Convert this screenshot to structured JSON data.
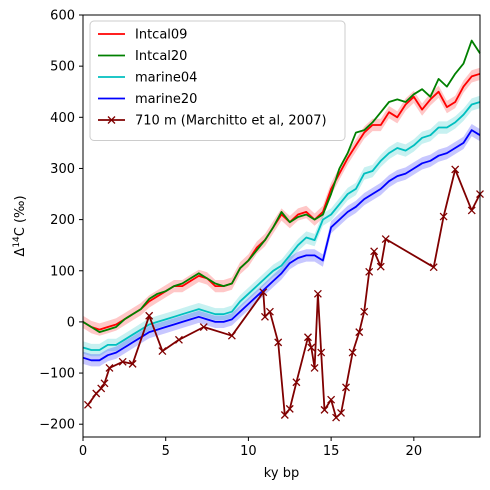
{
  "chart_data": {
    "type": "line",
    "xlabel": "ky bp",
    "ylabel_main": "Δ",
    "ylabel_sup": "14",
    "ylabel_rest": "C (‰)",
    "xlim": [
      0,
      24
    ],
    "ylim": [
      -225,
      600
    ],
    "xticks": [
      0,
      5,
      10,
      15,
      20
    ],
    "yticks": [
      -200,
      -100,
      0,
      100,
      200,
      300,
      400,
      500,
      600
    ],
    "legend_position": "top-left",
    "series": [
      {
        "name": "Intcal09",
        "color": "#ff0000",
        "band": true,
        "points": [
          [
            0,
            0
          ],
          [
            0.5,
            -10
          ],
          [
            1,
            -15
          ],
          [
            1.5,
            -10
          ],
          [
            2,
            -5
          ],
          [
            2.5,
            5
          ],
          [
            3,
            15
          ],
          [
            3.5,
            25
          ],
          [
            4,
            40
          ],
          [
            4.5,
            50
          ],
          [
            5,
            60
          ],
          [
            5.5,
            70
          ],
          [
            6,
            70
          ],
          [
            6.5,
            80
          ],
          [
            7,
            90
          ],
          [
            7.5,
            85
          ],
          [
            8,
            70
          ],
          [
            8.5,
            70
          ],
          [
            9,
            75
          ],
          [
            9.5,
            105
          ],
          [
            10,
            120
          ],
          [
            10.5,
            145
          ],
          [
            11,
            160
          ],
          [
            11.5,
            185
          ],
          [
            12,
            210
          ],
          [
            12.5,
            195
          ],
          [
            13,
            210
          ],
          [
            13.5,
            215
          ],
          [
            14,
            200
          ],
          [
            14.5,
            215
          ],
          [
            15,
            260
          ],
          [
            15.5,
            290
          ],
          [
            16,
            320
          ],
          [
            16.5,
            345
          ],
          [
            17,
            370
          ],
          [
            17.5,
            385
          ],
          [
            18,
            385
          ],
          [
            18.5,
            410
          ],
          [
            19,
            400
          ],
          [
            19.5,
            425
          ],
          [
            20,
            440
          ],
          [
            20.5,
            415
          ],
          [
            21,
            435
          ],
          [
            21.5,
            450
          ],
          [
            22,
            420
          ],
          [
            22.5,
            430
          ],
          [
            23,
            460
          ],
          [
            23.5,
            480
          ],
          [
            24,
            485
          ]
        ]
      },
      {
        "name": "Intcal20",
        "color": "#008000",
        "band": false,
        "points": [
          [
            0,
            0
          ],
          [
            0.5,
            -10
          ],
          [
            1,
            -20
          ],
          [
            1.5,
            -15
          ],
          [
            2,
            -10
          ],
          [
            2.5,
            5
          ],
          [
            3,
            15
          ],
          [
            3.5,
            25
          ],
          [
            4,
            45
          ],
          [
            4.5,
            55
          ],
          [
            5,
            60
          ],
          [
            5.5,
            70
          ],
          [
            6,
            75
          ],
          [
            6.5,
            85
          ],
          [
            7,
            95
          ],
          [
            7.5,
            85
          ],
          [
            8,
            75
          ],
          [
            8.5,
            70
          ],
          [
            9,
            75
          ],
          [
            9.5,
            105
          ],
          [
            10,
            120
          ],
          [
            10.5,
            140
          ],
          [
            11,
            160
          ],
          [
            11.5,
            185
          ],
          [
            12,
            215
          ],
          [
            12.5,
            195
          ],
          [
            13,
            205
          ],
          [
            13.5,
            210
          ],
          [
            14,
            200
          ],
          [
            14.5,
            210
          ],
          [
            15,
            250
          ],
          [
            15.5,
            300
          ],
          [
            16,
            330
          ],
          [
            16.5,
            370
          ],
          [
            17,
            375
          ],
          [
            17.5,
            390
          ],
          [
            18,
            410
          ],
          [
            18.5,
            430
          ],
          [
            19,
            435
          ],
          [
            19.5,
            430
          ],
          [
            20,
            445
          ],
          [
            20.5,
            455
          ],
          [
            21,
            440
          ],
          [
            21.5,
            475
          ],
          [
            22,
            460
          ],
          [
            22.5,
            485
          ],
          [
            23,
            505
          ],
          [
            23.5,
            550
          ],
          [
            24,
            525
          ]
        ]
      },
      {
        "name": "marine04",
        "color": "#00bfbf",
        "band": true,
        "points": [
          [
            0,
            -50
          ],
          [
            0.5,
            -55
          ],
          [
            1,
            -55
          ],
          [
            1.5,
            -45
          ],
          [
            2,
            -45
          ],
          [
            2.5,
            -35
          ],
          [
            3,
            -25
          ],
          [
            3.5,
            -15
          ],
          [
            4,
            -5
          ],
          [
            4.5,
            0
          ],
          [
            5,
            5
          ],
          [
            5.5,
            10
          ],
          [
            6,
            15
          ],
          [
            6.5,
            20
          ],
          [
            7,
            25
          ],
          [
            7.5,
            20
          ],
          [
            8,
            15
          ],
          [
            8.5,
            15
          ],
          [
            9,
            20
          ],
          [
            9.5,
            40
          ],
          [
            10,
            55
          ],
          [
            10.5,
            70
          ],
          [
            11,
            85
          ],
          [
            11.5,
            100
          ],
          [
            12,
            110
          ],
          [
            12.5,
            130
          ],
          [
            13,
            150
          ],
          [
            13.5,
            165
          ],
          [
            14,
            160
          ],
          [
            14.5,
            200
          ],
          [
            15,
            210
          ],
          [
            15.5,
            230
          ],
          [
            16,
            250
          ],
          [
            16.5,
            260
          ],
          [
            17,
            290
          ],
          [
            17.5,
            295
          ],
          [
            18,
            315
          ],
          [
            18.5,
            330
          ],
          [
            19,
            340
          ],
          [
            19.5,
            335
          ],
          [
            20,
            345
          ],
          [
            20.5,
            360
          ],
          [
            21,
            365
          ],
          [
            21.5,
            380
          ],
          [
            22,
            380
          ],
          [
            22.5,
            390
          ],
          [
            23,
            405
          ],
          [
            23.5,
            425
          ],
          [
            24,
            430
          ]
        ]
      },
      {
        "name": "marine20",
        "color": "#0000ff",
        "band": true,
        "points": [
          [
            0,
            -70
          ],
          [
            0.5,
            -75
          ],
          [
            1,
            -75
          ],
          [
            1.5,
            -65
          ],
          [
            2,
            -60
          ],
          [
            2.5,
            -50
          ],
          [
            3,
            -40
          ],
          [
            3.5,
            -30
          ],
          [
            4,
            -20
          ],
          [
            4.5,
            -15
          ],
          [
            5,
            -10
          ],
          [
            5.5,
            -5
          ],
          [
            6,
            0
          ],
          [
            6.5,
            5
          ],
          [
            7,
            10
          ],
          [
            7.5,
            5
          ],
          [
            8,
            0
          ],
          [
            8.5,
            0
          ],
          [
            9,
            5
          ],
          [
            9.5,
            20
          ],
          [
            10,
            35
          ],
          [
            10.5,
            50
          ],
          [
            11,
            65
          ],
          [
            11.5,
            80
          ],
          [
            12,
            95
          ],
          [
            12.5,
            115
          ],
          [
            13,
            125
          ],
          [
            13.5,
            130
          ],
          [
            14,
            130
          ],
          [
            14.5,
            120
          ],
          [
            15,
            185
          ],
          [
            15.5,
            200
          ],
          [
            16,
            215
          ],
          [
            16.5,
            225
          ],
          [
            17,
            240
          ],
          [
            17.5,
            250
          ],
          [
            18,
            260
          ],
          [
            18.5,
            275
          ],
          [
            19,
            285
          ],
          [
            19.5,
            290
          ],
          [
            20,
            300
          ],
          [
            20.5,
            310
          ],
          [
            21,
            315
          ],
          [
            21.5,
            325
          ],
          [
            22,
            330
          ],
          [
            22.5,
            340
          ],
          [
            23,
            350
          ],
          [
            23.5,
            375
          ],
          [
            24,
            365
          ]
        ]
      },
      {
        "name": "710 m (Marchitto et al, 2007)",
        "color": "#800000",
        "marker": "x",
        "band": false,
        "points": [
          [
            0.3,
            -162
          ],
          [
            0.8,
            -140
          ],
          [
            1.1,
            -130
          ],
          [
            1.3,
            -120
          ],
          [
            1.6,
            -90
          ],
          [
            2.4,
            -78
          ],
          [
            3.0,
            -82
          ],
          [
            4.0,
            12
          ],
          [
            4.8,
            -57
          ],
          [
            5.8,
            -35
          ],
          [
            7.3,
            -10
          ],
          [
            9.0,
            -27
          ],
          [
            10.9,
            58
          ],
          [
            11.0,
            10
          ],
          [
            11.3,
            20
          ],
          [
            11.8,
            -40
          ],
          [
            12.2,
            -182
          ],
          [
            12.5,
            -170
          ],
          [
            12.9,
            -118
          ],
          [
            13.6,
            -30
          ],
          [
            13.8,
            -50
          ],
          [
            14.0,
            -90
          ],
          [
            14.2,
            55
          ],
          [
            14.4,
            -60
          ],
          [
            14.6,
            -172
          ],
          [
            15.0,
            -152
          ],
          [
            15.3,
            -187
          ],
          [
            15.6,
            -178
          ],
          [
            15.9,
            -128
          ],
          [
            16.3,
            -60
          ],
          [
            16.7,
            -20
          ],
          [
            17.0,
            20
          ],
          [
            17.3,
            98
          ],
          [
            17.6,
            138
          ],
          [
            18.0,
            108
          ],
          [
            18.3,
            162
          ],
          [
            21.2,
            107
          ],
          [
            21.8,
            206
          ],
          [
            22.5,
            298
          ],
          [
            23.5,
            218
          ],
          [
            24.0,
            250
          ]
        ]
      }
    ]
  }
}
